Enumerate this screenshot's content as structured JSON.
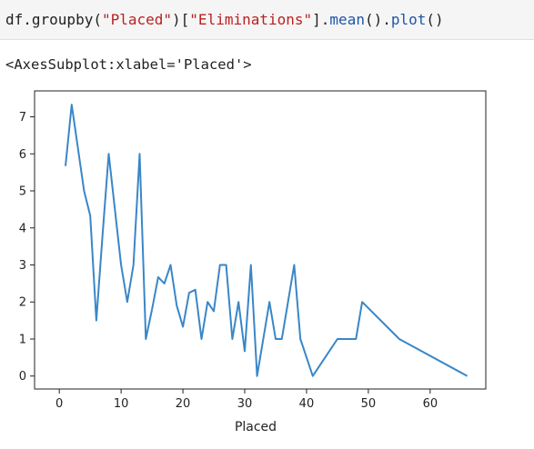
{
  "code_cell": {
    "parts": [
      {
        "text": "df.groupby(",
        "cls": "tok-name"
      },
      {
        "text": "\"Placed\"",
        "cls": "tok-str"
      },
      {
        "text": ")[",
        "cls": "tok-name"
      },
      {
        "text": "\"Eliminations\"",
        "cls": "tok-str"
      },
      {
        "text": "].",
        "cls": "tok-name"
      },
      {
        "text": "mean",
        "cls": "tok-fn"
      },
      {
        "text": "().",
        "cls": "tok-name"
      },
      {
        "text": "plot",
        "cls": "tok-fn"
      },
      {
        "text": "()",
        "cls": "tok-name"
      }
    ]
  },
  "output": {
    "repr": "<AxesSubplot:xlabel='Placed'>"
  },
  "chart_data": {
    "type": "line",
    "xlabel": "Placed",
    "ylabel": "",
    "xlim": [
      -4,
      69
    ],
    "ylim": [
      -0.35,
      7.7
    ],
    "xticks": [
      0,
      10,
      20,
      30,
      40,
      50,
      60
    ],
    "yticks": [
      0,
      1,
      2,
      3,
      4,
      5,
      6,
      7
    ],
    "grid": false,
    "colors": {
      "line": "#3a86c8",
      "axes": "#222222"
    },
    "series": [
      {
        "x": [
          1,
          2,
          4,
          5,
          6,
          7,
          8,
          9,
          10,
          11,
          12,
          13,
          14,
          15,
          16,
          17,
          18,
          19,
          20,
          21,
          22,
          23,
          24,
          25,
          26,
          27,
          28,
          29,
          30,
          31,
          32,
          33,
          34,
          35,
          36,
          37,
          38,
          39,
          41,
          45,
          48,
          49,
          55,
          66
        ],
        "y": [
          5.67,
          7.33,
          5.0,
          4.33,
          1.5,
          3.8,
          6.0,
          4.5,
          3.0,
          2.0,
          3.0,
          6.0,
          1.0,
          1.8,
          2.67,
          2.5,
          3.0,
          1.9,
          1.33,
          2.25,
          2.33,
          1.0,
          2.0,
          1.75,
          3.0,
          3.0,
          1.0,
          2.0,
          0.67,
          3.0,
          0.0,
          1.0,
          2.0,
          1.0,
          1.0,
          2.0,
          3.0,
          1.0,
          0.0,
          1.0,
          1.0,
          2.0,
          1.0,
          0.0
        ]
      }
    ]
  }
}
